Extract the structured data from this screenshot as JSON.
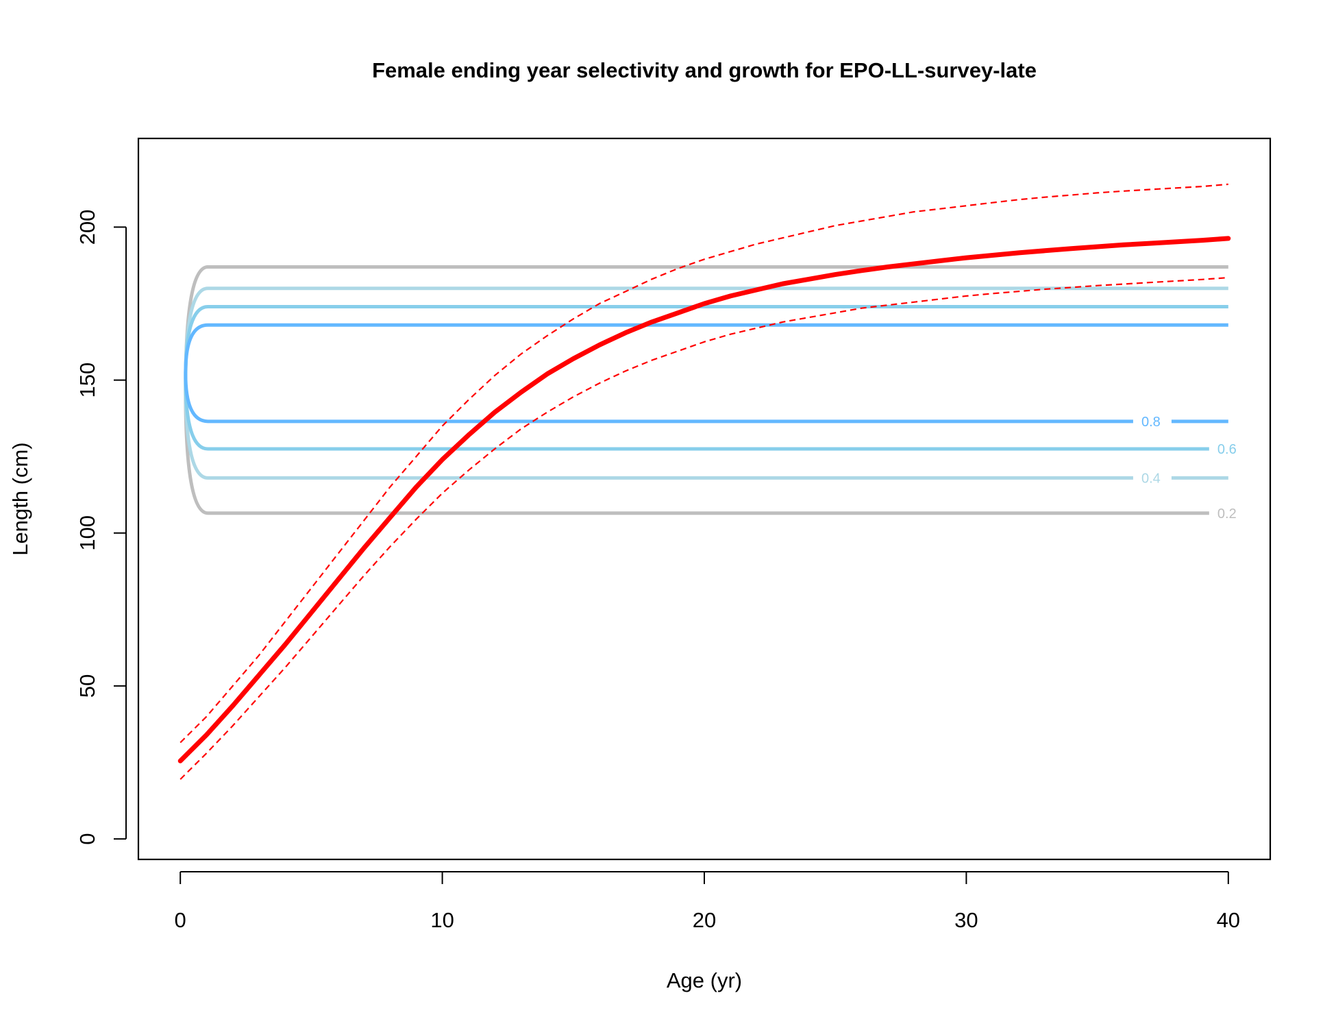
{
  "chart_data": {
    "type": "line",
    "title": "Female ending year selectivity and growth for EPO-LL-survey-late",
    "xlabel": "Age (yr)",
    "ylabel": "Length (cm)",
    "xlim": [
      -1.6,
      41.6
    ],
    "ylim": [
      -6.7,
      229
    ],
    "x_ticks": [
      0,
      10,
      20,
      30,
      40
    ],
    "y_ticks": [
      0,
      50,
      100,
      150,
      200
    ],
    "x_tick_labels": [
      "0",
      "10",
      "20",
      "30",
      "40"
    ],
    "y_tick_labels": [
      "0",
      "50",
      "100",
      "150",
      "200"
    ],
    "growth": {
      "color": "#ff0000",
      "ages": [
        0,
        1,
        2,
        3,
        4,
        5,
        6,
        7,
        8,
        9,
        10,
        11,
        12,
        13,
        14,
        15,
        16,
        17,
        18,
        19,
        20,
        21,
        22,
        23,
        24,
        25,
        26,
        27,
        28,
        29,
        30,
        31,
        32,
        33,
        34,
        35,
        36,
        37,
        38,
        39,
        40
      ],
      "mean": [
        25.5,
        34,
        43.5,
        53.5,
        63.5,
        74,
        84.5,
        95,
        105,
        115,
        124,
        132,
        139.5,
        146,
        152,
        157,
        161.5,
        165.5,
        169,
        172,
        175,
        177.5,
        179.5,
        181.5,
        183,
        184.5,
        185.8,
        187,
        188,
        189,
        190,
        190.8,
        191.6,
        192.3,
        193,
        193.6,
        194.2,
        194.7,
        195.2,
        195.7,
        196.3
      ],
      "upper": [
        31.5,
        40,
        50,
        60,
        71,
        82,
        93,
        104,
        115,
        125,
        135,
        143.5,
        151.5,
        158.5,
        164.5,
        170,
        175,
        179,
        183,
        186.5,
        189.5,
        192,
        194.5,
        196.5,
        198.5,
        200.5,
        202,
        203.5,
        205,
        206,
        207,
        208,
        209,
        209.8,
        210.5,
        211.2,
        211.8,
        212.3,
        212.8,
        213.3,
        214
      ],
      "lower": [
        19.5,
        28,
        37,
        46.5,
        56,
        66,
        76,
        86,
        95.5,
        104.5,
        113,
        120.5,
        127.5,
        134,
        139.5,
        144.5,
        149,
        153,
        156.5,
        159.5,
        162.5,
        165,
        167,
        169,
        170.5,
        172,
        173.5,
        174.5,
        175.5,
        176.5,
        177.5,
        178.3,
        179,
        179.7,
        180.3,
        180.9,
        181.4,
        181.9,
        182.4,
        182.9,
        183.5
      ]
    },
    "selectivity_contours": [
      {
        "level": "0.2",
        "color": "#bebebe",
        "upper": 187,
        "lower": 106.5
      },
      {
        "level": "0.4",
        "color": "#add8e6",
        "upper": 180,
        "lower": 118
      },
      {
        "level": "0.6",
        "color": "#87ceeb",
        "upper": 174,
        "lower": 127.5
      },
      {
        "level": "0.8",
        "color": "#63b8ff",
        "upper": 168,
        "lower": 136.5
      }
    ]
  }
}
